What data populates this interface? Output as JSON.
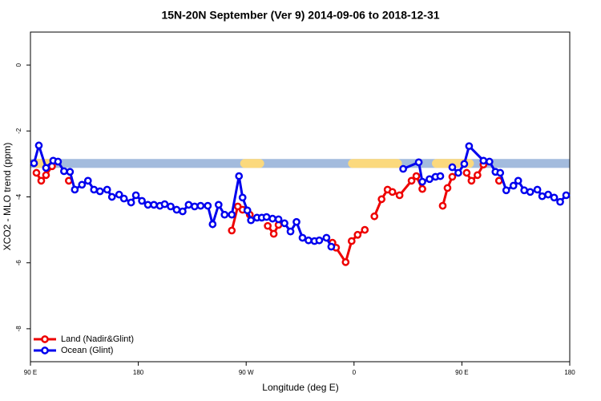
{
  "chart_data": {
    "type": "line",
    "title": "15N-20N September (Ver 9)   2014-09-06 to 2018-12-31",
    "xlabel": "Longitude (deg E)",
    "ylabel": "XCO2 - MLO trend (ppm)",
    "xlim": [
      90,
      540
    ],
    "ylim": [
      -9,
      1
    ],
    "xticks": [
      {
        "value": 90,
        "label": "90 E"
      },
      180,
      {
        "value": 270,
        "label": "90 W"
      },
      {
        "value": 360,
        "label": "0"
      },
      {
        "value": 450,
        "label": "90 E"
      },
      {
        "value": 540,
        "label": "180"
      }
    ],
    "yticks": [
      0,
      -2,
      -4,
      -6,
      -8
    ],
    "band": {
      "ylim": [
        -3.12,
        -2.85
      ],
      "color": "#a3bbdd",
      "land_color": "#fbd97d",
      "land_spans": [
        [
          92,
          110
        ],
        [
          265,
          285
        ],
        [
          355,
          400
        ],
        [
          425,
          460
        ]
      ]
    },
    "legend": "bottom-left",
    "series": [
      {
        "name": "Land (Nadir&Glint)",
        "color": "#ee0000",
        "x": [
          95,
          99,
          103,
          108,
          null,
          122,
          null,
          258,
          263,
          267,
          273,
          null,
          288,
          293,
          297,
          null,
          342,
          345,
          353,
          358,
          363,
          369,
          null,
          377,
          383,
          388,
          392,
          398,
          408,
          412,
          417,
          null,
          434,
          438,
          442,
          null,
          454,
          458,
          463,
          468,
          null,
          481
        ],
        "values": [
          -3.27,
          -3.51,
          -3.34,
          -3.07,
          null,
          -3.51,
          null,
          -5.02,
          -4.29,
          -4.39,
          -4.54,
          null,
          -4.88,
          -5.12,
          -4.85,
          null,
          -5.39,
          -5.54,
          -5.98,
          -5.34,
          -5.15,
          -5.0,
          null,
          -4.59,
          -4.07,
          -3.78,
          -3.85,
          -3.95,
          -3.51,
          -3.37,
          -3.76,
          null,
          -4.27,
          -3.73,
          -3.39,
          null,
          -3.27,
          -3.51,
          -3.34,
          -3.02,
          null,
          -3.51
        ]
      },
      {
        "name": "Ocean (Glint)",
        "color": "#0000ee",
        "x": [
          93,
          97,
          103,
          109,
          113,
          118,
          123,
          127,
          133,
          138,
          143,
          148,
          154,
          158,
          164,
          168,
          174,
          178,
          183,
          188,
          193,
          198,
          202,
          207,
          212,
          217,
          222,
          227,
          232,
          238,
          242,
          247,
          252,
          258,
          264,
          267,
          271,
          274,
          279,
          283,
          287,
          292,
          297,
          302,
          307,
          312,
          317,
          322,
          327,
          331,
          337,
          341,
          null,
          401,
          414,
          417,
          423,
          428,
          432,
          null,
          442,
          447,
          452,
          456,
          468,
          473,
          478,
          482,
          487,
          493,
          497,
          502,
          507,
          513,
          517,
          522,
          527,
          532,
          537
        ],
        "values": [
          -2.98,
          -2.44,
          -3.12,
          -2.9,
          -2.93,
          -3.22,
          -3.24,
          -3.78,
          -3.63,
          -3.51,
          -3.78,
          -3.83,
          -3.78,
          -4.0,
          -3.93,
          -4.05,
          -4.17,
          -3.95,
          -4.12,
          -4.24,
          -4.24,
          -4.27,
          -4.22,
          -4.29,
          -4.39,
          -4.44,
          -4.24,
          -4.29,
          -4.27,
          -4.27,
          -4.83,
          -4.24,
          -4.54,
          -4.54,
          -3.37,
          -4.02,
          -4.41,
          -4.71,
          -4.63,
          -4.63,
          -4.61,
          -4.66,
          -4.68,
          -4.8,
          -5.05,
          -4.76,
          -5.24,
          -5.32,
          -5.34,
          -5.32,
          -5.24,
          -5.51,
          null,
          -3.15,
          -2.95,
          -3.54,
          -3.46,
          -3.39,
          -3.37,
          null,
          -3.1,
          -3.27,
          -3.0,
          -2.46,
          -2.9,
          -2.93,
          -3.24,
          -3.27,
          -3.8,
          -3.66,
          -3.51,
          -3.8,
          -3.85,
          -3.78,
          -3.98,
          -3.93,
          -4.02,
          -4.15,
          -3.95
        ]
      }
    ]
  }
}
